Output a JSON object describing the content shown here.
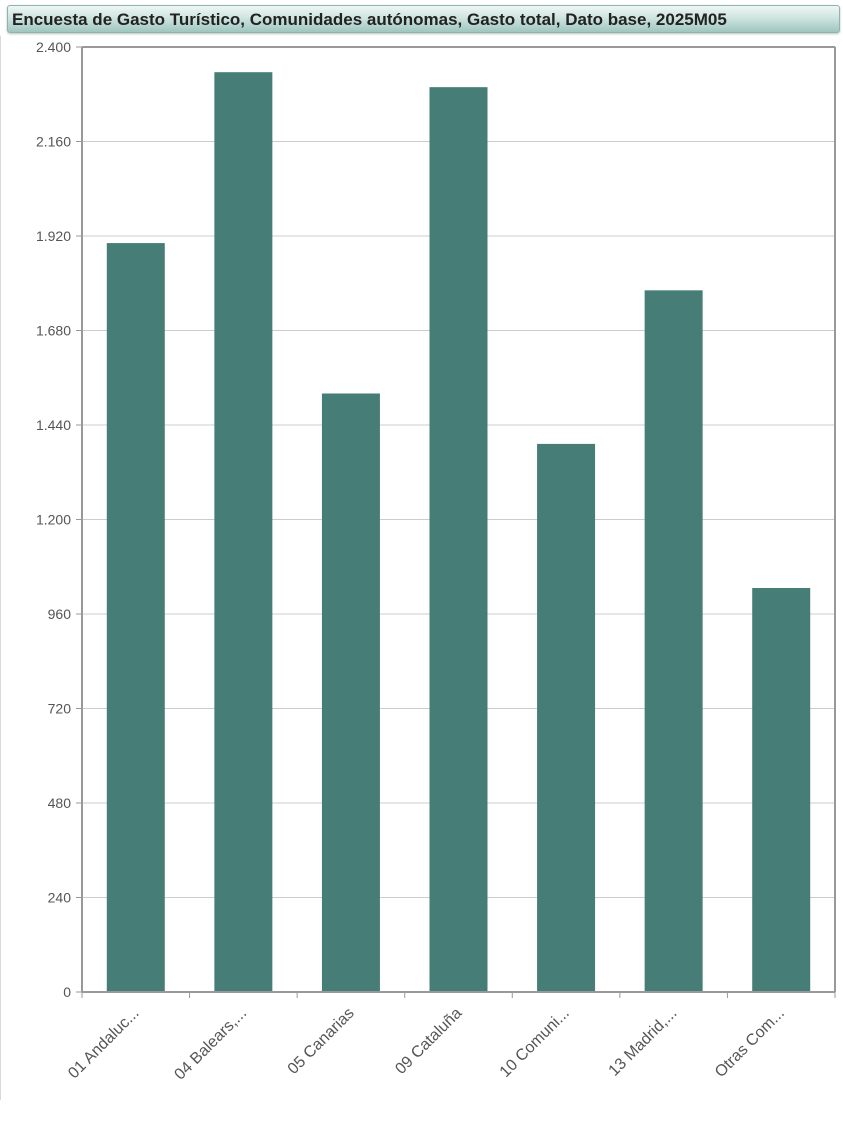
{
  "header": {
    "title": "Encuesta de Gasto Turístico, Comunidades autónomas, Gasto total, Dato base, 2025M05"
  },
  "chart_data": {
    "type": "bar",
    "title": "Encuesta de Gasto Turístico, Comunidades autónomas, Gasto total, Dato base, 2025M05",
    "categories": [
      "01 Andaluc...",
      "04 Balears,...",
      "05 Canarias",
      "09 Cataluña",
      "10 Comuni...",
      "13 Madrid,...",
      "Otras Com..."
    ],
    "values": [
      1902,
      2336,
      1520,
      2298,
      1392,
      1782,
      1026
    ],
    "ylim": [
      0,
      2400
    ],
    "yticks": [
      0,
      240,
      480,
      720,
      960,
      1200,
      1440,
      1680,
      1920,
      2160,
      2400
    ],
    "ytick_labels": [
      "0",
      "240",
      "480",
      "720",
      "960",
      "1.200",
      "1.440",
      "1.680",
      "1.920",
      "2.160",
      "2.400"
    ],
    "grid": true,
    "bar_color": "#467d76",
    "grid_color": "#cccccc",
    "axis_color": "#999999"
  }
}
